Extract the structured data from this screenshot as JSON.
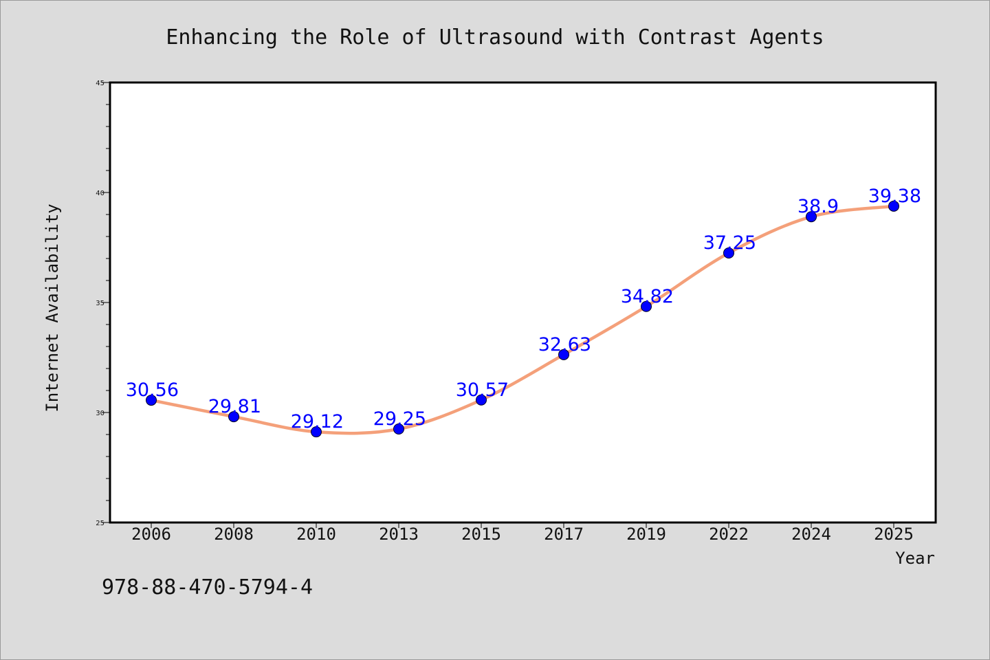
{
  "footnote": "978-88-470-5794-4",
  "colors": {
    "background": "#dcdcdc",
    "plot_background": "#ffffff",
    "line": "#f4a07a",
    "marker": "#0000ff",
    "data_label": "#0000ff"
  },
  "chart_data": {
    "type": "line",
    "title": "Enhancing the Role of Ultrasound with Contrast Agents",
    "xlabel": "Year",
    "ylabel": "Internet Availability",
    "categories": [
      "2006",
      "2008",
      "2010",
      "2013",
      "2015",
      "2017",
      "2019",
      "2022",
      "2024",
      "2025"
    ],
    "series": [
      {
        "values": [
          30.56,
          29.81,
          29.12,
          29.25,
          30.57,
          32.63,
          34.82,
          37.25,
          38.9,
          39.38
        ],
        "labels": [
          "30.56",
          "29.81",
          "29.12",
          "29.25",
          "30.57",
          "32.63",
          "34.82",
          "37.25",
          "38.9",
          "39.38"
        ]
      }
    ],
    "ylim": [
      25,
      45
    ],
    "yticks": [
      "25",
      "30",
      "35",
      "40",
      "45"
    ],
    "grid": false,
    "smooth": true,
    "markers": "circle"
  }
}
